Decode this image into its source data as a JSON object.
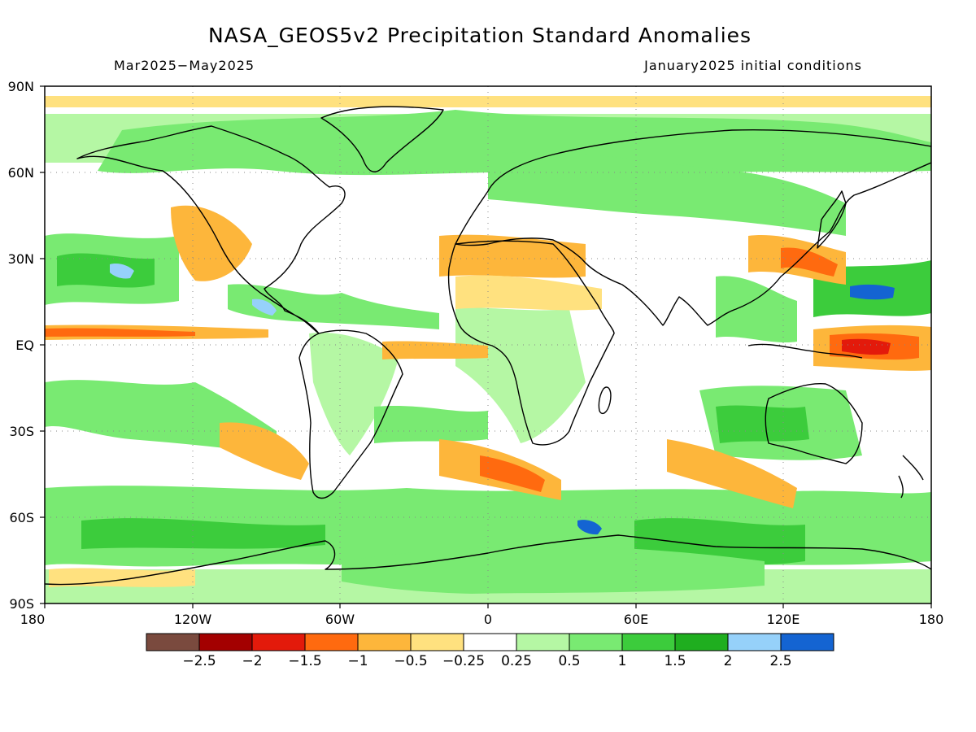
{
  "title": "NASA_GEOS5v2 Precipitation Standard Anomalies",
  "subtitle_left": "Mar2025−May2025",
  "subtitle_right": "January2025 initial conditions",
  "lat_labels": [
    "90N",
    "60N",
    "30N",
    "EQ",
    "30S",
    "60S",
    "90S"
  ],
  "lon_labels": [
    "180",
    "120W",
    "60W",
    "0",
    "60E",
    "120E",
    "180"
  ],
  "colorbar": {
    "colors": [
      "#7a4a3e",
      "#a30000",
      "#e31a0b",
      "#ff6a0f",
      "#fdb63b",
      "#ffe17f",
      "#ffffff",
      "#b5f7a4",
      "#79ea72",
      "#3ccc3c",
      "#1fae1f",
      "#96d1fa",
      "#1464d2"
    ],
    "labels": [
      "−2.5",
      "−2",
      "−1.5",
      "−1",
      "−0.5",
      "−0.25",
      "0.25",
      "0.5",
      "1",
      "1.5",
      "2",
      "2.5"
    ]
  },
  "map": {
    "lat_range": [
      -90,
      90
    ],
    "lon_range": [
      -180,
      180
    ],
    "coastline_color": "#000000",
    "gridline_style": "dotted"
  }
}
